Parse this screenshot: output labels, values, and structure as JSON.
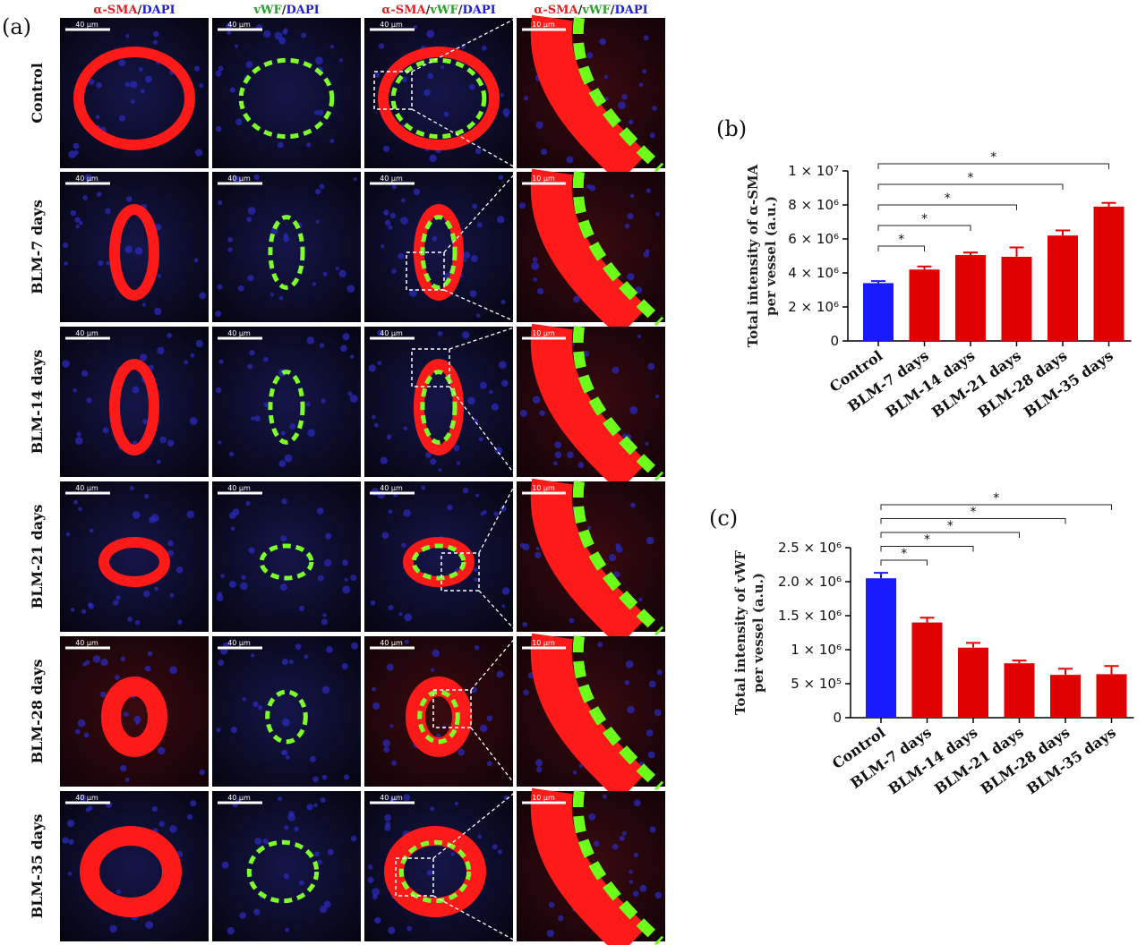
{
  "panel_a": {
    "letter": "(a)",
    "columns": [
      {
        "parts": [
          {
            "text": "α-SMA",
            "color": "#e02020"
          },
          {
            "text": "/",
            "color": "#222222"
          },
          {
            "text": "DAPI",
            "color": "#2020d0"
          }
        ]
      },
      {
        "parts": [
          {
            "text": "vWF",
            "color": "#2aa02a"
          },
          {
            "text": "/",
            "color": "#222222"
          },
          {
            "text": "DAPI",
            "color": "#2020d0"
          }
        ]
      },
      {
        "parts": [
          {
            "text": "α-SMA",
            "color": "#e02020"
          },
          {
            "text": "/",
            "color": "#222222"
          },
          {
            "text": "vWF",
            "color": "#2aa02a"
          },
          {
            "text": "/",
            "color": "#222222"
          },
          {
            "text": "DAPI",
            "color": "#2020d0"
          }
        ]
      },
      {
        "parts": [
          {
            "text": "α-SMA",
            "color": "#e02020"
          },
          {
            "text": "/",
            "color": "#222222"
          },
          {
            "text": "vWF",
            "color": "#2aa02a"
          },
          {
            "text": "/",
            "color": "#222222"
          },
          {
            "text": "DAPI",
            "color": "#2020d0"
          }
        ]
      }
    ],
    "rows": [
      "Control",
      "BLM-7 days",
      "BLM-14 days",
      "BLM-21 days",
      "BLM-28 days",
      "BLM-35 days"
    ],
    "scale_bars": [
      "40 µm",
      "40 µm",
      "40 µm",
      "10 µm"
    ]
  },
  "chart_data": [
    {
      "panel": "(b)",
      "type": "bar",
      "ylabel_parts": [
        "Total intensity of ",
        "α-SMA",
        "per vessel (a.u.)"
      ],
      "categories": [
        "Control",
        "BLM-7 days",
        "BLM-14 days",
        "BLM-21 days",
        "BLM-28 days",
        "BLM-35 days"
      ],
      "values": [
        3400000,
        4200000,
        5050000,
        4950000,
        6200000,
        7900000
      ],
      "errors": [
        120000,
        180000,
        150000,
        550000,
        300000,
        220000
      ],
      "colors": [
        "#1a1aff",
        "#e00000",
        "#e00000",
        "#e00000",
        "#e00000",
        "#e00000"
      ],
      "ylim": [
        0,
        10000000
      ],
      "ticks": [
        {
          "value": 0,
          "label": "0"
        },
        {
          "value": 2000000,
          "label": "2 × 10⁶"
        },
        {
          "value": 4000000,
          "label": "4 × 10⁶"
        },
        {
          "value": 6000000,
          "label": "6 × 10⁶"
        },
        {
          "value": 8000000,
          "label": "8 × 10⁶"
        },
        {
          "value": 10000000,
          "label": "1 × 10⁷"
        }
      ],
      "significance": [
        {
          "from": 0,
          "to": 1,
          "label": "*"
        },
        {
          "from": 0,
          "to": 2,
          "label": "*"
        },
        {
          "from": 0,
          "to": 3,
          "label": "*"
        },
        {
          "from": 0,
          "to": 4,
          "label": "*"
        },
        {
          "from": 0,
          "to": 5,
          "label": "*"
        }
      ]
    },
    {
      "panel": "(c)",
      "type": "bar",
      "ylabel_parts": [
        "Total intensity of vWF",
        "",
        "per vessel (a.u.)"
      ],
      "categories": [
        "Control",
        "BLM-7 days",
        "BLM-14 days",
        "BLM-21 days",
        "BLM-28 days",
        "BLM-35 days"
      ],
      "values": [
        2050000,
        1400000,
        1030000,
        800000,
        630000,
        640000
      ],
      "errors": [
        80000,
        70000,
        70000,
        40000,
        90000,
        120000
      ],
      "colors": [
        "#1a1aff",
        "#e00000",
        "#e00000",
        "#e00000",
        "#e00000",
        "#e00000"
      ],
      "ylim": [
        0,
        2500000
      ],
      "ticks": [
        {
          "value": 0,
          "label": "0"
        },
        {
          "value": 500000,
          "label": "5 × 10⁵"
        },
        {
          "value": 1000000,
          "label": "1 × 10⁶"
        },
        {
          "value": 1500000,
          "label": "1.5 × 10⁶"
        },
        {
          "value": 2000000,
          "label": "2.0 × 10⁶"
        },
        {
          "value": 2500000,
          "label": "2.5 × 10⁶"
        }
      ],
      "significance": [
        {
          "from": 0,
          "to": 1,
          "label": "*"
        },
        {
          "from": 0,
          "to": 2,
          "label": "*"
        },
        {
          "from": 0,
          "to": 3,
          "label": "*"
        },
        {
          "from": 0,
          "to": 4,
          "label": "*"
        },
        {
          "from": 0,
          "to": 5,
          "label": "*"
        }
      ]
    }
  ]
}
